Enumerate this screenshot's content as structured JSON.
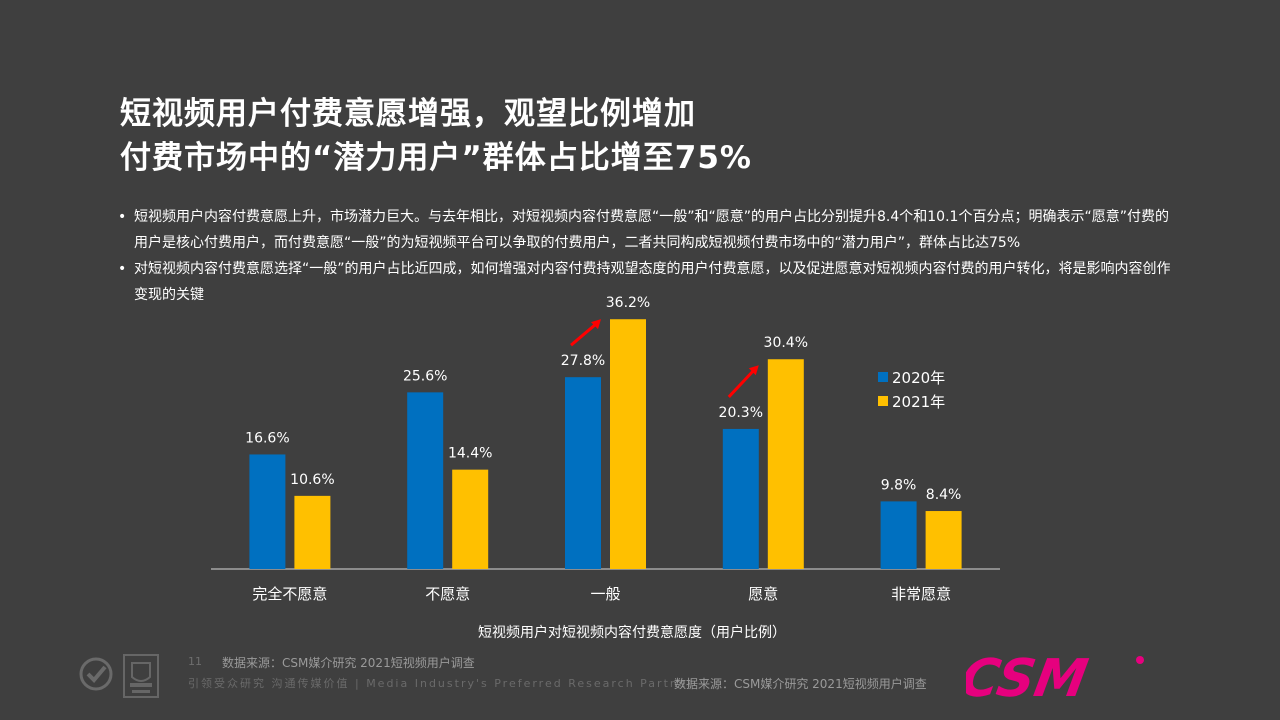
{
  "title": {
    "line1": "短视频用户付费意愿增强，观望比例增加",
    "line2": "付费市场中的“潜力用户”群体占比增至75%"
  },
  "bullets": [
    "短视频用户内容付费意愿上升，市场潜力巨大。与去年相比，对短视频内容付费意愿“一般”和“愿意”的用户占比分别提升8.4个和10.1个百分点；明确表示“愿意”付费的用户是核心付费用户，而付费意愿“一般”的为短视频平台可以争取的付费用户，二者共同构成短视频付费市场中的“潜力用户”，群体占比达75%",
    "对短视频内容付费意愿选择“一般”的用户占比近四成，如何增强对内容付费持观望态度的用户付费意愿，以及促进愿意对短视频内容付费的用户转化，将是影响内容创作变现的关键"
  ],
  "chart_data": {
    "type": "bar",
    "categories": [
      "完全不愿意",
      "不愿意",
      "一般",
      "愿意",
      "非常愿意"
    ],
    "series": [
      {
        "name": "2020年",
        "values": [
          16.6,
          25.6,
          27.8,
          20.3,
          9.8
        ],
        "color": "#0070c0"
      },
      {
        "name": "2021年",
        "values": [
          10.6,
          14.4,
          36.2,
          30.4,
          8.4
        ],
        "color": "#ffc000"
      }
    ],
    "value_labels": [
      [
        "16.6%",
        "25.6%",
        "27.8%",
        "20.3%",
        "9.8%"
      ],
      [
        "10.6%",
        "14.4%",
        "36.2%",
        "30.4%",
        "8.4%"
      ]
    ],
    "ylim": [
      0,
      40
    ],
    "increase_arrows": [
      "一般",
      "愿意"
    ],
    "arrow_color": "#ff0000",
    "legend_position": "top-right",
    "caption": "短视频用户对短视频内容付费意愿度（用户比例）",
    "grid": false
  },
  "footer": {
    "page_number": "11",
    "source_left": "数据来源：CSM媒介研究 2021短视频用户调查",
    "slogan": "引领受众研究 沟通传媒价值 | Media Industry's Preferred Research Partner",
    "source_right": "数据来源：CSM媒介研究 2021短视频用户调查"
  },
  "logo": {
    "text": "CSM",
    "color": "#e6007e"
  }
}
